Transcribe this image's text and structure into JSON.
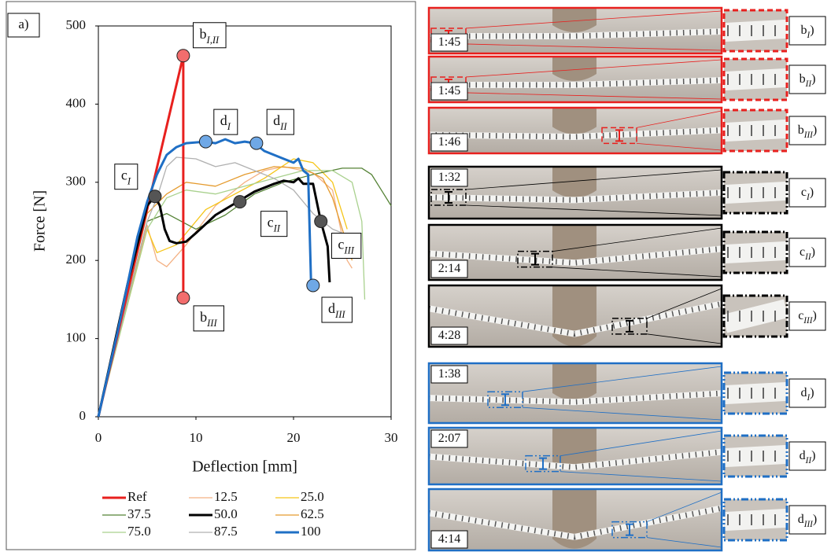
{
  "chart_data": {
    "type": "line",
    "panel_label": "a)",
    "xlabel": "Deflection [mm]",
    "ylabel": "Force [N]",
    "xlim": [
      0,
      30
    ],
    "xticks": [
      0,
      10,
      20,
      30
    ],
    "ylim": [
      0,
      500
    ],
    "yticks": [
      0,
      100,
      200,
      300,
      400,
      500
    ],
    "grid": false,
    "series": [
      {
        "name": "Ref",
        "color": "#e8201e",
        "width": 3,
        "x": [
          0,
          8.7,
          8.7
        ],
        "values": [
          0,
          462,
          152
        ]
      },
      {
        "name": "12.5",
        "color": "#f4b183",
        "width": 1.3,
        "x": [
          0,
          5,
          6,
          7,
          9,
          12,
          15,
          17,
          19,
          22,
          24,
          25.5,
          26
        ],
        "values": [
          0,
          245,
          200,
          192,
          220,
          270,
          300,
          315,
          320,
          312,
          290,
          200,
          190
        ]
      },
      {
        "name": "25.0",
        "color": "#f5c518",
        "width": 1.3,
        "x": [
          0,
          5,
          6,
          8,
          11,
          14,
          17,
          20,
          22,
          24,
          25,
          25.5
        ],
        "values": [
          0,
          240,
          210,
          220,
          265,
          285,
          305,
          330,
          325,
          300,
          260,
          240
        ]
      },
      {
        "name": "37.5",
        "color": "#548235",
        "width": 1.3,
        "x": [
          0,
          5,
          7,
          10,
          13,
          16,
          19,
          22,
          25,
          27,
          28,
          29,
          30
        ],
        "values": [
          0,
          250,
          260,
          240,
          258,
          285,
          300,
          310,
          318,
          318,
          310,
          290,
          270
        ]
      },
      {
        "name": "50.0",
        "color": "#000000",
        "width": 3,
        "x": [
          0,
          3,
          5,
          5.8,
          6.3,
          6.8,
          7.3,
          8,
          9,
          10,
          12,
          14,
          16,
          18,
          19,
          20,
          20.5,
          21,
          22,
          22.8,
          23.5,
          23.7
        ],
        "values": [
          0,
          170,
          270,
          282,
          270,
          240,
          225,
          222,
          224,
          235,
          258,
          273,
          288,
          298,
          302,
          300,
          305,
          298,
          298,
          250,
          218,
          172
        ]
      },
      {
        "name": "62.5",
        "color": "#e59b2e",
        "width": 1.3,
        "x": [
          0,
          5,
          7,
          9,
          12,
          15,
          18,
          21,
          23,
          24,
          25,
          26
        ],
        "values": [
          0,
          260,
          285,
          300,
          295,
          310,
          320,
          318,
          305,
          280,
          240,
          200
        ]
      },
      {
        "name": "75.0",
        "color": "#a9d18e",
        "width": 1.3,
        "x": [
          0,
          5,
          7,
          9,
          12,
          15,
          18,
          21,
          24,
          26,
          27,
          27.3
        ],
        "values": [
          0,
          240,
          280,
          290,
          285,
          295,
          305,
          315,
          315,
          300,
          250,
          150
        ]
      },
      {
        "name": "87.5",
        "color": "#b0b0b0",
        "width": 1.3,
        "x": [
          0,
          5,
          6,
          7,
          8,
          10,
          12,
          14,
          16,
          18,
          20,
          22,
          24,
          25
        ],
        "values": [
          0,
          250,
          280,
          320,
          332,
          330,
          320,
          325,
          315,
          305,
          290,
          260,
          240,
          235
        ]
      },
      {
        "name": "100",
        "color": "#1f6fc5",
        "width": 3,
        "x": [
          0,
          2,
          4,
          5,
          6,
          7,
          8,
          9,
          11,
          12,
          13,
          14,
          15,
          16,
          17,
          18,
          19,
          20,
          20.5,
          21,
          21.5,
          21.8,
          22.4
        ],
        "values": [
          0,
          110,
          230,
          275,
          310,
          335,
          345,
          350,
          352,
          350,
          355,
          350,
          352,
          350,
          340,
          335,
          330,
          325,
          330,
          315,
          310,
          170,
          168
        ]
      }
    ],
    "markers": [
      {
        "label": "b",
        "sub": "I,II",
        "color": "#f26d6d",
        "x": 8.7,
        "y": 462
      },
      {
        "label": "b",
        "sub": "III",
        "color": "#f26d6d",
        "x": 8.7,
        "y": 152
      },
      {
        "label": "c",
        "sub": "I",
        "color": "#555555",
        "x": 5.8,
        "y": 282
      },
      {
        "label": "c",
        "sub": "II",
        "color": "#555555",
        "x": 14.5,
        "y": 275
      },
      {
        "label": "c",
        "sub": "III",
        "color": "#555555",
        "x": 22.8,
        "y": 250
      },
      {
        "label": "d",
        "sub": "I",
        "color": "#6fa8e6",
        "x": 11,
        "y": 352
      },
      {
        "label": "d",
        "sub": "II",
        "color": "#6fa8e6",
        "x": 16.2,
        "y": 350
      },
      {
        "label": "d",
        "sub": "III",
        "color": "#6fa8e6",
        "x": 22,
        "y": 168
      }
    ]
  },
  "panels": [
    {
      "color": "#e8201e",
      "items": [
        {
          "time": "1:45",
          "label": "b",
          "sub": "I",
          "suffix": ")"
        },
        {
          "time": "1:45",
          "label": "b",
          "sub": "II",
          "suffix": ")"
        },
        {
          "time": "1:46",
          "label": "b",
          "sub": "III",
          "suffix": ")"
        }
      ]
    },
    {
      "color": "#000000",
      "items": [
        {
          "time": "1:32",
          "label": "c",
          "sub": "I",
          "suffix": ")"
        },
        {
          "time": "2:14",
          "label": "c",
          "sub": "II",
          "suffix": ")"
        },
        {
          "time": "4:28",
          "label": "c",
          "sub": "III",
          "suffix": ")"
        }
      ]
    },
    {
      "color": "#1f6fc5",
      "items": [
        {
          "time": "1:38",
          "label": "d",
          "sub": "I",
          "suffix": ")"
        },
        {
          "time": "2:07",
          "label": "d",
          "sub": "II",
          "suffix": ")"
        },
        {
          "time": "4:14",
          "label": "d",
          "sub": "III",
          "suffix": ")"
        }
      ]
    }
  ]
}
